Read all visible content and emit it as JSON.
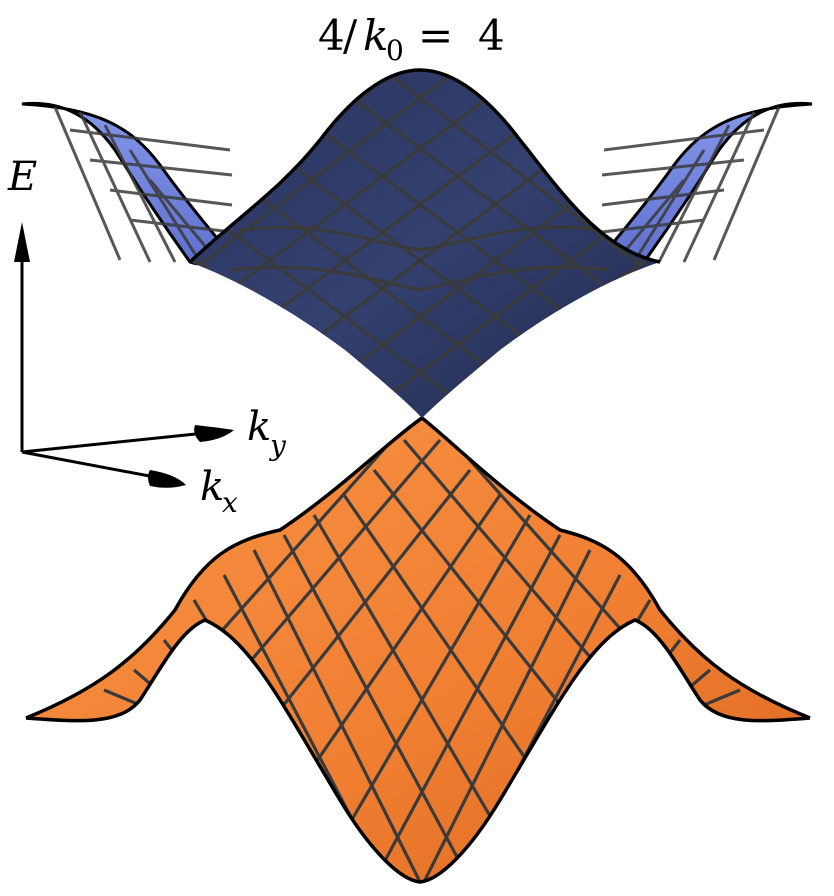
{
  "title": {
    "lhs_num": "4",
    "lhs_sym": "k",
    "lhs_sub": "0",
    "eq": "=",
    "rhs": "4"
  },
  "axes": {
    "energy_label": "E",
    "ky_label": {
      "sym": "k",
      "sub": "y"
    },
    "kx_label": {
      "sym": "k",
      "sub": "x"
    }
  },
  "colors": {
    "upper_band_center": "#2e3a66",
    "upper_band_wings": "#6f82dc",
    "lower_band": "#f28236",
    "lower_band_dark": "#d96a23",
    "mesh": "#3a3a3a",
    "outline": "#000000"
  },
  "surfaces": [
    {
      "name": "upper-band",
      "description_visible": false
    },
    {
      "name": "lower-band",
      "description_visible": false
    }
  ]
}
